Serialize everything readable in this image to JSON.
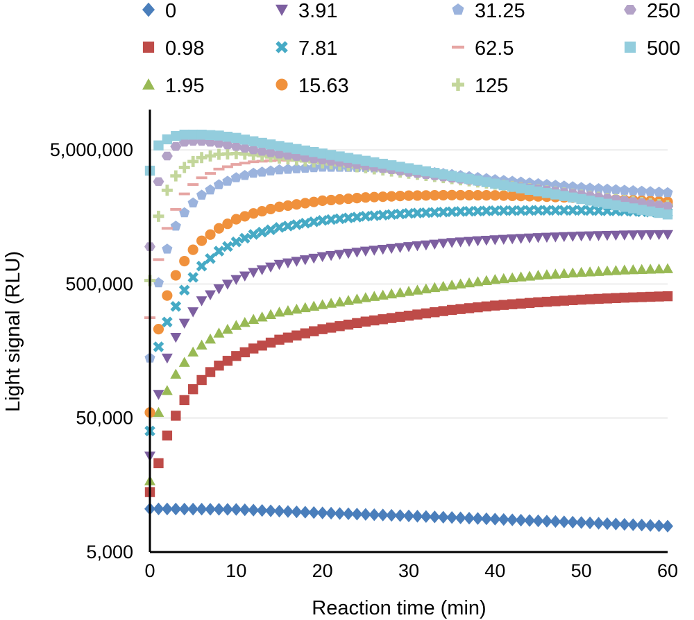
{
  "chart_data": {
    "type": "scatter",
    "title": "",
    "xlabel": "Reaction time (min)",
    "ylabel": "Light signal (RLU)",
    "xlim": [
      0,
      60
    ],
    "ylim": [
      5000,
      10000000
    ],
    "y_scale": "log",
    "x_ticks": [
      "0",
      "10",
      "20",
      "30",
      "40",
      "50",
      "60"
    ],
    "y_ticks": [
      {
        "value": 5000,
        "label": "5,000"
      },
      {
        "value": 50000,
        "label": "50,000"
      },
      {
        "value": 500000,
        "label": "500,000"
      },
      {
        "value": 5000000,
        "label": "5,000,000"
      }
    ],
    "grid": true,
    "legend": {
      "position": "top",
      "columns": 4
    },
    "series": [
      {
        "name": "0",
        "color": "#4a7ebb",
        "marker": "diamond",
        "points": [
          [
            0,
            10500
          ],
          [
            10,
            10400
          ],
          [
            20,
            9800
          ],
          [
            30,
            9300
          ],
          [
            40,
            8800
          ],
          [
            50,
            8300
          ],
          [
            60,
            7800
          ]
        ]
      },
      {
        "name": "0.98",
        "color": "#be4b48",
        "marker": "square",
        "points": [
          [
            0,
            14000
          ],
          [
            1,
            23000
          ],
          [
            2,
            37000
          ],
          [
            3,
            52000
          ],
          [
            4,
            68000
          ],
          [
            5,
            82000
          ],
          [
            6,
            96000
          ],
          [
            7,
            110000
          ],
          [
            8,
            123000
          ],
          [
            10,
            145000
          ],
          [
            12,
            165000
          ],
          [
            15,
            192000
          ],
          [
            20,
            230000
          ],
          [
            25,
            262000
          ],
          [
            30,
            290000
          ],
          [
            35,
            320000
          ],
          [
            40,
            345000
          ],
          [
            45,
            365000
          ],
          [
            50,
            382000
          ],
          [
            55,
            395000
          ],
          [
            60,
            405000
          ]
        ]
      },
      {
        "name": "1.95",
        "color": "#98b954",
        "marker": "triangle",
        "points": [
          [
            0,
            17000
          ],
          [
            1,
            55000
          ],
          [
            2,
            80000
          ],
          [
            3,
            106000
          ],
          [
            4,
            130000
          ],
          [
            5,
            155000
          ],
          [
            6,
            175000
          ],
          [
            8,
            215000
          ],
          [
            10,
            245000
          ],
          [
            12,
            272000
          ],
          [
            15,
            308000
          ],
          [
            20,
            350000
          ],
          [
            25,
            395000
          ],
          [
            30,
            440000
          ],
          [
            35,
            490000
          ],
          [
            40,
            540000
          ],
          [
            45,
            580000
          ],
          [
            50,
            610000
          ],
          [
            55,
            635000
          ],
          [
            60,
            650000
          ]
        ]
      },
      {
        "name": "3.91",
        "color": "#7d5fa0",
        "marker": "triangle-down",
        "points": [
          [
            0,
            26000
          ],
          [
            1,
            75000
          ],
          [
            2,
            140000
          ],
          [
            3,
            200000
          ],
          [
            4,
            255000
          ],
          [
            5,
            310000
          ],
          [
            6,
            375000
          ],
          [
            8,
            460000
          ],
          [
            10,
            540000
          ],
          [
            12,
            610000
          ],
          [
            15,
            700000
          ],
          [
            20,
            800000
          ],
          [
            25,
            880000
          ],
          [
            30,
            950000
          ],
          [
            35,
            1020000
          ],
          [
            40,
            1070000
          ],
          [
            45,
            1110000
          ],
          [
            50,
            1140000
          ],
          [
            55,
            1160000
          ],
          [
            60,
            1170000
          ]
        ]
      },
      {
        "name": "7.81",
        "color": "#46aac5",
        "marker": "x",
        "points": [
          [
            0,
            40000
          ],
          [
            1,
            170000
          ],
          [
            2,
            260000
          ],
          [
            3,
            340000
          ],
          [
            4,
            450000
          ],
          [
            5,
            560000
          ],
          [
            6,
            680000
          ],
          [
            8,
            880000
          ],
          [
            10,
            1030000
          ],
          [
            12,
            1170000
          ],
          [
            15,
            1320000
          ],
          [
            20,
            1490000
          ],
          [
            25,
            1600000
          ],
          [
            30,
            1680000
          ],
          [
            35,
            1730000
          ],
          [
            40,
            1760000
          ],
          [
            45,
            1770000
          ],
          [
            50,
            1770000
          ],
          [
            55,
            1750000
          ],
          [
            60,
            1700000
          ]
        ]
      },
      {
        "name": "15.63",
        "color": "#f0913c",
        "marker": "circle",
        "points": [
          [
            0,
            55000
          ],
          [
            1,
            230000
          ],
          [
            2,
            410000
          ],
          [
            3,
            580000
          ],
          [
            4,
            740000
          ],
          [
            5,
            900000
          ],
          [
            6,
            1050000
          ],
          [
            8,
            1300000
          ],
          [
            10,
            1520000
          ],
          [
            12,
            1680000
          ],
          [
            15,
            1880000
          ],
          [
            20,
            2090000
          ],
          [
            25,
            2210000
          ],
          [
            30,
            2280000
          ],
          [
            35,
            2300000
          ],
          [
            40,
            2290000
          ],
          [
            45,
            2250000
          ],
          [
            50,
            2190000
          ],
          [
            55,
            2120000
          ],
          [
            60,
            2050000
          ]
        ]
      },
      {
        "name": "31.25",
        "color": "#9bb3dd",
        "marker": "pentagon",
        "points": [
          [
            0,
            140000
          ],
          [
            1,
            510000
          ],
          [
            2,
            910000
          ],
          [
            3,
            1350000
          ],
          [
            4,
            1700000
          ],
          [
            5,
            2010000
          ],
          [
            6,
            2300000
          ],
          [
            8,
            2750000
          ],
          [
            10,
            3100000
          ],
          [
            12,
            3350000
          ],
          [
            15,
            3550000
          ],
          [
            20,
            3720000
          ],
          [
            25,
            3700000
          ],
          [
            30,
            3550000
          ],
          [
            35,
            3280000
          ],
          [
            40,
            3000000
          ],
          [
            45,
            2800000
          ],
          [
            50,
            2620000
          ],
          [
            55,
            2500000
          ],
          [
            60,
            2400000
          ]
        ]
      },
      {
        "name": "62.5",
        "color": "#e6a5a3",
        "marker": "dash",
        "points": [
          [
            0,
            280000
          ],
          [
            1,
            760000
          ],
          [
            2,
            1300000
          ],
          [
            3,
            1800000
          ],
          [
            4,
            2350000
          ],
          [
            5,
            2760000
          ],
          [
            6,
            3100000
          ],
          [
            8,
            3600000
          ],
          [
            10,
            3900000
          ],
          [
            12,
            4080000
          ],
          [
            15,
            4200000
          ],
          [
            20,
            4150000
          ],
          [
            25,
            3900000
          ],
          [
            30,
            3550000
          ],
          [
            35,
            3150000
          ],
          [
            40,
            2820000
          ],
          [
            45,
            2550000
          ],
          [
            50,
            2320000
          ],
          [
            55,
            2120000
          ],
          [
            60,
            1950000
          ]
        ]
      },
      {
        "name": "125",
        "color": "#c3d69b",
        "marker": "plus",
        "points": [
          [
            0,
            530000
          ],
          [
            1,
            1600000
          ],
          [
            2,
            2500000
          ],
          [
            3,
            3200000
          ],
          [
            4,
            3700000
          ],
          [
            5,
            4100000
          ],
          [
            6,
            4380000
          ],
          [
            8,
            4640000
          ],
          [
            10,
            4700000
          ],
          [
            12,
            4600000
          ],
          [
            15,
            4350000
          ],
          [
            20,
            4000000
          ],
          [
            25,
            3680000
          ],
          [
            30,
            3350000
          ],
          [
            35,
            3050000
          ],
          [
            40,
            2780000
          ],
          [
            45,
            2520000
          ],
          [
            50,
            2300000
          ],
          [
            55,
            2100000
          ],
          [
            60,
            1920000
          ]
        ]
      },
      {
        "name": "250",
        "color": "#b3a2c7",
        "marker": "hexagon",
        "points": [
          [
            0,
            950000
          ],
          [
            1,
            2900000
          ],
          [
            2,
            4500000
          ],
          [
            3,
            5300000
          ],
          [
            4,
            5700000
          ],
          [
            5,
            5800000
          ],
          [
            6,
            5800000
          ],
          [
            8,
            5600000
          ],
          [
            10,
            5300000
          ],
          [
            12,
            5000000
          ],
          [
            15,
            4650000
          ],
          [
            20,
            4200000
          ],
          [
            25,
            3800000
          ],
          [
            30,
            3400000
          ],
          [
            35,
            3080000
          ],
          [
            40,
            2800000
          ],
          [
            45,
            2550000
          ],
          [
            50,
            2320000
          ],
          [
            55,
            2100000
          ],
          [
            60,
            1900000
          ]
        ]
      },
      {
        "name": "500",
        "color": "#93cddd",
        "marker": "square",
        "points": [
          [
            0,
            3500000
          ],
          [
            1,
            5400000
          ],
          [
            2,
            6000000
          ],
          [
            3,
            6350000
          ],
          [
            4,
            6500000
          ],
          [
            5,
            6500000
          ],
          [
            6,
            6500000
          ],
          [
            7,
            6450000
          ],
          [
            8,
            6400000
          ],
          [
            10,
            6150000
          ],
          [
            12,
            5800000
          ],
          [
            15,
            5350000
          ],
          [
            20,
            4700000
          ],
          [
            25,
            4150000
          ],
          [
            30,
            3650000
          ],
          [
            35,
            3200000
          ],
          [
            40,
            2800000
          ],
          [
            45,
            2450000
          ],
          [
            50,
            2150000
          ],
          [
            55,
            1880000
          ],
          [
            60,
            1650000
          ]
        ]
      }
    ]
  }
}
